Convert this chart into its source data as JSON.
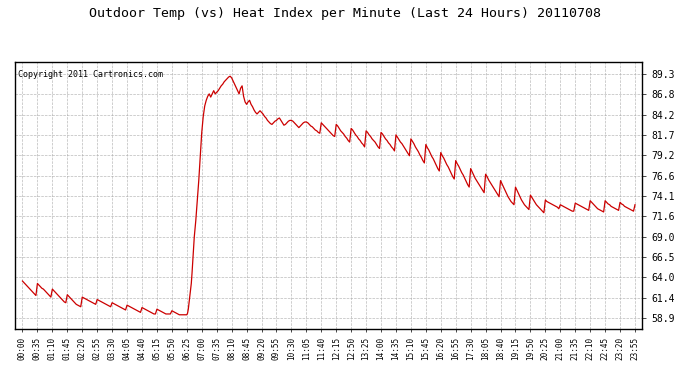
{
  "title": "Outdoor Temp (vs) Heat Index per Minute (Last 24 Hours) 20110708",
  "copyright": "Copyright 2011 Cartronics.com",
  "line_color": "#cc0000",
  "background_color": "#ffffff",
  "plot_background": "#ffffff",
  "grid_color": "#aaaaaa",
  "yticks": [
    58.9,
    61.4,
    64.0,
    66.5,
    69.0,
    71.6,
    74.1,
    76.6,
    79.2,
    81.7,
    84.2,
    86.8,
    89.3
  ],
  "ylim": [
    57.5,
    90.8
  ],
  "xtick_labels": [
    "00:00",
    "00:35",
    "01:10",
    "01:45",
    "02:20",
    "02:55",
    "03:30",
    "04:05",
    "04:40",
    "05:15",
    "05:50",
    "06:25",
    "07:00",
    "07:35",
    "08:10",
    "08:45",
    "09:20",
    "09:55",
    "10:30",
    "11:05",
    "11:40",
    "12:15",
    "12:50",
    "13:25",
    "14:00",
    "14:35",
    "15:10",
    "15:45",
    "16:20",
    "16:55",
    "17:30",
    "18:05",
    "18:40",
    "19:15",
    "19:50",
    "20:25",
    "21:00",
    "21:35",
    "22:10",
    "22:45",
    "23:20",
    "23:55"
  ],
  "curve_x": [
    0,
    0.1,
    0.2,
    0.3,
    0.4,
    0.5,
    0.6,
    0.7,
    0.8,
    0.9,
    1,
    1.1,
    1.2,
    1.3,
    1.4,
    1.5,
    1.6,
    1.7,
    1.8,
    1.9,
    2,
    2.1,
    2.2,
    2.3,
    2.4,
    2.5,
    2.6,
    2.7,
    2.8,
    2.9,
    3,
    3.1,
    3.2,
    3.3,
    3.4,
    3.5,
    3.6,
    3.7,
    3.8,
    3.9,
    4,
    4.1,
    4.2,
    4.3,
    4.4,
    4.5,
    4.6,
    4.7,
    4.8,
    4.9,
    5,
    5.1,
    5.2,
    5.3,
    5.4,
    5.5,
    5.6,
    5.7,
    5.8,
    5.9,
    6,
    6.1,
    6.2,
    6.3,
    6.4,
    6.5,
    6.6,
    6.7,
    6.8,
    6.9,
    7,
    7.1,
    7.2,
    7.3,
    7.4,
    7.5,
    7.6,
    7.7,
    7.8,
    7.9,
    8,
    8.1,
    8.2,
    8.3,
    8.4,
    8.5,
    8.6,
    8.7,
    8.8,
    8.9,
    9,
    9.1,
    9.2,
    9.3,
    9.4,
    9.5,
    9.6,
    9.7,
    9.8,
    9.9,
    10,
    10.1,
    10.2,
    10.3,
    10.4,
    10.5,
    10.6,
    10.7,
    10.8,
    10.9,
    11,
    11.05,
    11.1,
    11.15,
    11.2,
    11.25,
    11.3,
    11.35,
    11.4,
    11.45,
    11.5,
    11.6,
    11.7,
    11.8,
    11.9,
    12,
    12.1,
    12.2,
    12.3,
    12.4,
    12.5,
    12.6,
    12.7,
    12.8,
    12.9,
    13,
    13.1,
    13.2,
    13.3,
    13.4,
    13.5,
    13.6,
    13.7,
    13.8,
    13.9,
    14,
    14.1,
    14.2,
    14.3,
    14.4,
    14.5,
    14.6,
    14.7,
    14.8,
    14.9,
    15,
    15.1,
    15.2,
    15.3,
    15.4,
    15.5,
    15.6,
    15.7,
    15.8,
    15.9,
    16,
    16.1,
    16.2,
    16.3,
    16.4,
    16.5,
    16.6,
    16.7,
    16.8,
    16.9,
    17,
    17.1,
    17.2,
    17.3,
    17.4,
    17.5,
    17.6,
    17.7,
    17.8,
    17.9,
    18,
    18.1,
    18.2,
    18.3,
    18.4,
    18.5,
    18.6,
    18.7,
    18.8,
    18.9,
    19,
    19.1,
    19.2,
    19.3,
    19.4,
    19.5,
    19.6,
    19.7,
    19.8,
    19.9,
    20,
    20.1,
    20.2,
    20.3,
    20.4,
    20.5,
    20.6,
    20.7,
    20.8,
    20.9,
    21,
    21.1,
    21.2,
    21.3,
    21.4,
    21.5,
    21.6,
    21.7,
    21.8,
    21.9,
    22,
    22.1,
    22.2,
    22.3,
    22.4,
    22.5,
    22.6,
    22.7,
    22.8,
    22.9,
    23,
    23.1,
    23.2,
    23.3,
    23.4,
    23.5,
    23.6,
    23.7,
    23.8,
    23.9,
    24,
    24.1,
    24.2,
    24.3,
    24.4,
    24.5,
    24.6,
    24.7,
    24.8,
    24.9,
    25,
    25.1,
    25.2,
    25.3,
    25.4,
    25.5,
    25.6,
    25.7,
    25.8,
    25.9,
    26,
    26.1,
    26.2,
    26.3,
    26.4,
    26.5,
    26.6,
    26.7,
    26.8,
    26.9,
    27,
    27.1,
    27.2,
    27.3,
    27.4,
    27.5,
    27.6,
    27.7,
    27.8,
    27.9,
    28,
    28.1,
    28.2,
    28.3,
    28.4,
    28.5,
    28.6,
    28.7,
    28.8,
    28.9,
    29,
    29.1,
    29.2,
    29.3,
    29.4,
    29.5,
    29.6,
    29.7,
    29.8,
    29.9,
    30,
    30.1,
    30.2,
    30.3,
    30.4,
    30.5,
    30.6,
    30.7,
    30.8,
    30.9,
    31,
    31.1,
    31.2,
    31.3,
    31.4,
    31.5,
    31.6,
    31.7,
    31.8,
    31.9,
    32,
    32.1,
    32.2,
    32.3,
    32.4,
    32.5,
    32.6,
    32.7,
    32.8,
    32.9,
    33,
    33.1,
    33.2,
    33.3,
    33.4,
    33.5,
    33.6,
    33.7,
    33.8,
    33.9,
    34,
    34.1,
    34.2,
    34.3,
    34.4,
    34.5,
    34.6,
    34.7,
    34.8,
    34.9,
    35,
    35.1,
    35.2,
    35.3,
    35.4,
    35.5,
    35.6,
    35.7,
    35.8,
    35.9,
    36,
    36.1,
    36.2,
    36.3,
    36.4,
    36.5,
    36.6,
    36.7,
    36.8,
    36.9,
    37,
    37.1,
    37.2,
    37.3,
    37.4,
    37.5,
    37.6,
    37.7,
    37.8,
    37.9,
    38,
    38.1,
    38.2,
    38.3,
    38.4,
    38.5,
    38.6,
    38.7,
    38.8,
    38.9,
    39,
    39.1,
    39.2,
    39.3,
    39.4,
    39.5,
    39.6,
    39.7,
    39.8,
    39.9,
    40,
    40.1,
    40.2,
    40.3,
    40.4,
    40.5,
    40.6,
    40.7,
    40.8,
    40.9,
    41
  ],
  "curve_y": [
    63.5,
    63.3,
    63.1,
    62.9,
    62.7,
    62.5,
    62.3,
    62.1,
    61.9,
    61.7,
    63.2,
    63.0,
    62.8,
    62.6,
    62.5,
    62.3,
    62.1,
    61.9,
    61.7,
    61.5,
    62.5,
    62.3,
    62.1,
    61.9,
    61.7,
    61.5,
    61.3,
    61.1,
    60.9,
    60.8,
    61.8,
    61.6,
    61.4,
    61.2,
    61.0,
    60.8,
    60.6,
    60.5,
    60.4,
    60.3,
    61.5,
    61.4,
    61.3,
    61.2,
    61.1,
    61.0,
    60.9,
    60.8,
    60.7,
    60.6,
    61.2,
    61.1,
    61.0,
    60.9,
    60.8,
    60.7,
    60.6,
    60.5,
    60.4,
    60.3,
    60.8,
    60.7,
    60.6,
    60.5,
    60.4,
    60.3,
    60.2,
    60.1,
    60.0,
    59.9,
    60.5,
    60.4,
    60.3,
    60.2,
    60.1,
    60.0,
    59.9,
    59.8,
    59.7,
    59.6,
    60.2,
    60.1,
    60.0,
    59.9,
    59.8,
    59.7,
    59.6,
    59.5,
    59.4,
    59.4,
    60.0,
    59.9,
    59.8,
    59.7,
    59.6,
    59.5,
    59.4,
    59.4,
    59.4,
    59.4,
    59.8,
    59.7,
    59.6,
    59.5,
    59.4,
    59.3,
    59.3,
    59.3,
    59.3,
    59.3,
    59.3,
    59.5,
    60.0,
    60.8,
    61.5,
    62.3,
    63.2,
    64.5,
    66.0,
    67.5,
    69.0,
    71.0,
    73.5,
    76.0,
    79.0,
    82.0,
    84.0,
    85.3,
    86.0,
    86.5,
    86.8,
    86.4,
    86.8,
    87.2,
    86.8,
    87.0,
    87.2,
    87.5,
    87.8,
    88.0,
    88.3,
    88.5,
    88.7,
    88.9,
    89.0,
    88.8,
    88.4,
    88.0,
    87.6,
    87.2,
    86.8,
    87.5,
    87.8,
    86.5,
    85.8,
    85.5,
    85.8,
    86.0,
    85.5,
    85.2,
    84.8,
    84.5,
    84.3,
    84.5,
    84.7,
    84.5,
    84.3,
    84.0,
    83.8,
    83.5,
    83.3,
    83.1,
    83.0,
    83.2,
    83.4,
    83.5,
    83.7,
    83.8,
    83.5,
    83.2,
    82.9,
    83.0,
    83.2,
    83.4,
    83.5,
    83.5,
    83.4,
    83.2,
    83.0,
    82.8,
    82.6,
    82.8,
    83.0,
    83.2,
    83.3,
    83.3,
    83.2,
    83.0,
    82.8,
    82.7,
    82.5,
    82.3,
    82.2,
    82.0,
    81.9,
    83.2,
    83.0,
    82.8,
    82.6,
    82.4,
    82.2,
    82.0,
    81.8,
    81.6,
    81.5,
    83.0,
    82.8,
    82.5,
    82.2,
    82.0,
    81.8,
    81.5,
    81.3,
    81.0,
    80.8,
    82.5,
    82.3,
    82.0,
    81.7,
    81.5,
    81.2,
    81.0,
    80.7,
    80.5,
    80.2,
    82.2,
    82.0,
    81.7,
    81.5,
    81.2,
    81.0,
    80.8,
    80.5,
    80.2,
    80.0,
    82.0,
    81.8,
    81.5,
    81.2,
    81.0,
    80.7,
    80.5,
    80.2,
    80.0,
    79.7,
    81.7,
    81.4,
    81.1,
    80.8,
    80.6,
    80.3,
    80.0,
    79.7,
    79.4,
    79.1,
    81.2,
    80.9,
    80.6,
    80.2,
    79.9,
    79.6,
    79.2,
    78.9,
    78.5,
    78.2,
    80.5,
    80.1,
    79.8,
    79.4,
    79.0,
    78.7,
    78.3,
    77.9,
    77.5,
    77.2,
    79.5,
    79.1,
    78.8,
    78.4,
    78.0,
    77.7,
    77.3,
    76.9,
    76.5,
    76.2,
    78.5,
    78.1,
    77.8,
    77.4,
    77.0,
    76.7,
    76.3,
    75.9,
    75.5,
    75.2,
    77.5,
    77.1,
    76.7,
    76.3,
    76.0,
    75.7,
    75.4,
    75.1,
    74.8,
    74.5,
    76.8,
    76.5,
    76.1,
    75.8,
    75.5,
    75.2,
    74.9,
    74.6,
    74.3,
    74.0,
    76.0,
    75.6,
    75.2,
    74.8,
    74.4,
    74.0,
    73.7,
    73.4,
    73.2,
    73.0,
    75.2,
    74.8,
    74.4,
    74.0,
    73.6,
    73.3,
    73.0,
    72.8,
    72.6,
    72.4,
    74.2,
    73.9,
    73.6,
    73.3,
    73.0,
    72.8,
    72.6,
    72.4,
    72.2,
    72.0,
    73.6,
    73.4,
    73.3,
    73.2,
    73.1,
    73.0,
    72.9,
    72.8,
    72.7,
    72.5,
    73.0,
    72.9,
    72.8,
    72.7,
    72.6,
    72.5,
    72.4,
    72.3,
    72.2,
    72.2,
    73.2,
    73.1,
    73.0,
    72.9,
    72.8,
    72.7,
    72.6,
    72.5,
    72.4,
    72.3,
    73.5,
    73.3,
    73.1,
    72.9,
    72.7,
    72.5,
    72.4,
    72.3,
    72.2,
    72.1,
    73.5,
    73.3,
    73.1,
    73.0,
    72.8,
    72.7,
    72.6,
    72.5,
    72.4,
    72.3,
    73.3,
    73.1,
    73.0,
    72.8,
    72.7,
    72.6,
    72.5,
    72.4,
    72.3,
    72.2,
    73.0
  ]
}
